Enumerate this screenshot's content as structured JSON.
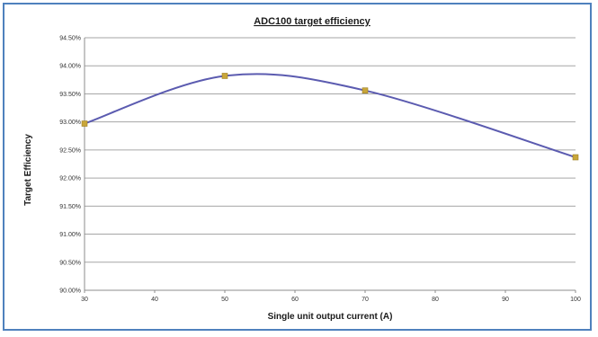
{
  "chart_data": {
    "type": "line",
    "title": "ADC100 target efficiency",
    "xlabel": "Single unit output current (A)",
    "ylabel": "Target Efficiency",
    "x_ticks": [
      "30",
      "40",
      "50",
      "60",
      "70",
      "80",
      "90",
      "100"
    ],
    "y_ticks": [
      "90.00%",
      "90.50%",
      "91.00%",
      "91.50%",
      "92.00%",
      "92.50%",
      "93.00%",
      "93.50%",
      "94.00%",
      "94.50%"
    ],
    "xlim": [
      30,
      100
    ],
    "ylim": [
      90.0,
      94.5
    ],
    "grid": "horizontal",
    "legend": "none",
    "smoothed": true,
    "series": [
      {
        "x": [
          30,
          50,
          70,
          100
        ],
        "y": [
          92.97,
          93.82,
          93.56,
          92.37
        ],
        "line_color": "#5b5bb0",
        "marker_color": "#c8a63a"
      }
    ]
  }
}
